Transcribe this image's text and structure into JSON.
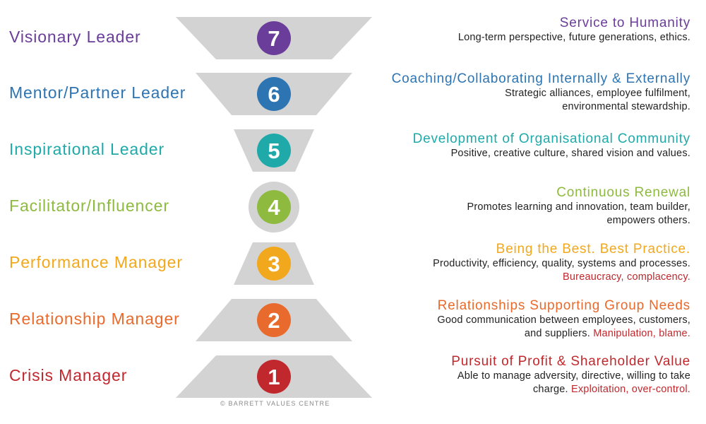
{
  "levels": [
    {
      "number": "7",
      "leader": "Visionary Leader",
      "heading": "Service to Humanity",
      "lines": [
        {
          "text": "Long-term perspective, future generations, ethics."
        }
      ],
      "color": "#6a3d9a"
    },
    {
      "number": "6",
      "leader": "Mentor/Partner Leader",
      "heading": "Coaching/Collaborating Internally & Externally",
      "lines": [
        {
          "text": "Strategic alliances, employee fulfilment,"
        },
        {
          "text": "environmental stewardship."
        }
      ],
      "color": "#2d74b2"
    },
    {
      "number": "5",
      "leader": "Inspirational Leader",
      "heading": "Development of Organisational Community",
      "lines": [
        {
          "text": "Positive, creative culture, shared vision and values."
        }
      ],
      "color": "#1fa9a9"
    },
    {
      "number": "4",
      "leader": "Facilitator/Influencer",
      "heading": "Continuous Renewal",
      "lines": [
        {
          "text": "Promotes learning and innovation, team builder,"
        },
        {
          "text": "empowers others."
        }
      ],
      "color": "#8dba3f"
    },
    {
      "number": "3",
      "leader": "Performance Manager",
      "heading": "Being the Best. Best Practice.",
      "lines": [
        {
          "text": "Productivity, efficiency, quality, systems and processes."
        },
        {
          "text": "",
          "negative": "Bureaucracy, complacency."
        }
      ],
      "color": "#f2a81d"
    },
    {
      "number": "2",
      "leader": "Relationship Manager",
      "heading": "Relationships Supporting Group Needs",
      "lines": [
        {
          "text": "Good communication between employees, customers,"
        },
        {
          "text": "and suppliers. ",
          "negative": "Manipulation, blame."
        }
      ],
      "color": "#e86a2c"
    },
    {
      "number": "1",
      "leader": "Crisis Manager",
      "heading": "Pursuit of Profit & Shareholder Value",
      "lines": [
        {
          "text": "Able to manage adversity, directive, willing to take"
        },
        {
          "text": "charge. ",
          "negative": "Exploitation, over-control."
        }
      ],
      "color": "#c0282d"
    }
  ],
  "shape_color": "#d3d3d3",
  "copyright": "© BARRETT VALUES CENTRE"
}
